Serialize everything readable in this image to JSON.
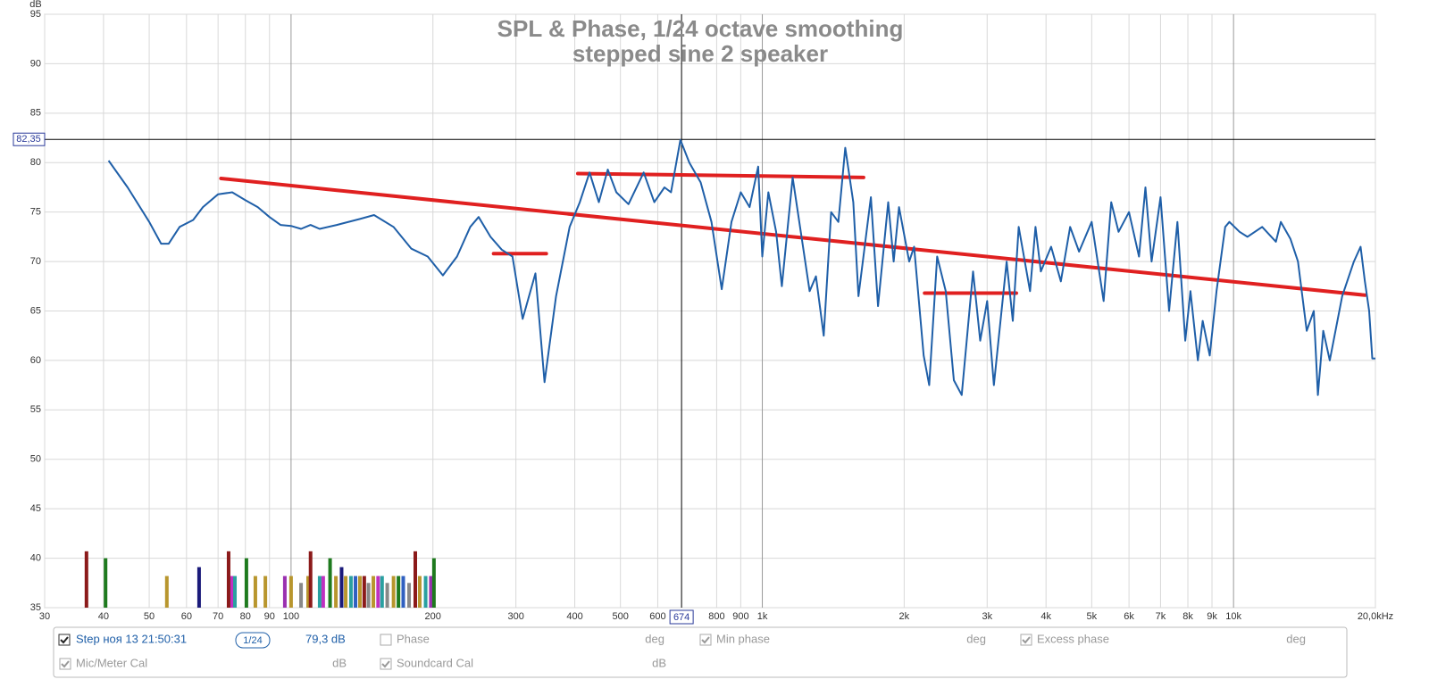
{
  "chart_data": {
    "type": "line",
    "title": "SPL & Phase, 1/24 octave smoothing",
    "subtitle": "stepped sine 2 speaker",
    "y_label": "dB",
    "xscale": "log",
    "xlim": [
      30,
      20000
    ],
    "ylim": [
      35,
      95
    ],
    "xticks": [
      30,
      40,
      50,
      60,
      70,
      80,
      90,
      100,
      200,
      300,
      400,
      500,
      600,
      800,
      900,
      {
        "value": 1000,
        "label": "1k"
      },
      {
        "value": 2000,
        "label": "2k"
      },
      {
        "value": 3000,
        "label": "3k"
      },
      {
        "value": 4000,
        "label": "4k"
      },
      {
        "value": 5000,
        "label": "5k"
      },
      {
        "value": 6000,
        "label": "6k"
      },
      {
        "value": 7000,
        "label": "7k"
      },
      {
        "value": 8000,
        "label": "8k"
      },
      {
        "value": 9000,
        "label": "9k"
      },
      {
        "value": 10000,
        "label": "10k"
      },
      {
        "value": 20000,
        "label": "20,0kHz"
      }
    ],
    "yticks": [
      35,
      40,
      45,
      50,
      55,
      60,
      65,
      70,
      75,
      80,
      85,
      90,
      95
    ],
    "grid": true,
    "cursor": {
      "x": {
        "value": 674,
        "label": "674"
      },
      "y": {
        "value": 82.35,
        "label": "82,35"
      }
    },
    "series": [
      {
        "name": "Step ноя 13 21:50:31",
        "color": "#1f5fa8",
        "x": [
          41,
          45,
          50,
          53,
          55,
          58,
          62,
          65,
          70,
          75,
          80,
          85,
          90,
          95,
          100,
          105,
          110,
          115,
          125,
          140,
          150,
          165,
          180,
          195,
          210,
          225,
          240,
          250,
          265,
          280,
          295,
          310,
          330,
          345,
          365,
          390,
          410,
          430,
          450,
          470,
          490,
          520,
          560,
          590,
          620,
          640,
          670,
          700,
          740,
          780,
          820,
          860,
          900,
          940,
          980,
          1000,
          1030,
          1070,
          1100,
          1160,
          1220,
          1260,
          1300,
          1350,
          1400,
          1450,
          1500,
          1560,
          1600,
          1700,
          1760,
          1850,
          1900,
          1950,
          2050,
          2100,
          2200,
          2260,
          2350,
          2450,
          2550,
          2650,
          2800,
          2900,
          3000,
          3100,
          3300,
          3400,
          3500,
          3700,
          3800,
          3900,
          4100,
          4300,
          4500,
          4700,
          5000,
          5300,
          5500,
          5700,
          6000,
          6300,
          6500,
          6700,
          7000,
          7300,
          7600,
          7900,
          8100,
          8400,
          8600,
          8900,
          9200,
          9600,
          9800,
          10300,
          10700,
          11500,
          12300,
          12600,
          13200,
          13700,
          14300,
          14800,
          15100,
          15500,
          16000,
          17000,
          18000,
          18600,
          19000,
          19400,
          19700,
          20000
        ],
        "values": [
          80.2,
          77.5,
          74,
          71.8,
          71.8,
          73.5,
          74.2,
          75.5,
          76.8,
          77,
          76.2,
          75.5,
          74.5,
          73.7,
          73.6,
          73.3,
          73.7,
          73.3,
          73.7,
          74.3,
          74.7,
          73.5,
          71.3,
          70.5,
          68.6,
          70.5,
          73.5,
          74.5,
          72.5,
          71.2,
          70.5,
          64.2,
          68.8,
          57.8,
          66.5,
          73.5,
          76,
          79,
          76,
          79.3,
          77,
          75.8,
          79,
          76,
          77.5,
          77,
          82.3,
          80,
          78,
          74,
          67.2,
          74,
          77,
          75.5,
          79.6,
          70.5,
          77,
          73,
          67.5,
          78.5,
          71.5,
          67,
          68.5,
          62.5,
          75,
          74,
          81.5,
          76,
          66.5,
          76.5,
          65.5,
          76,
          70,
          75.5,
          70,
          71.5,
          60.5,
          57.5,
          70.5,
          67,
          58,
          56.5,
          69,
          62,
          66,
          57.5,
          70,
          64,
          73.5,
          67,
          73.5,
          69,
          71.5,
          68,
          73.5,
          71,
          74,
          66,
          76,
          73,
          75,
          70.5,
          77.5,
          70,
          76.5,
          65,
          74,
          62,
          67,
          60,
          64,
          60.5,
          67,
          73.5,
          74,
          73,
          72.5,
          73.5,
          72,
          74,
          72.3,
          70,
          63,
          65,
          56.5,
          63,
          60,
          66.5,
          70,
          71.5,
          68,
          65,
          60.2,
          60.2
        ]
      }
    ],
    "target_lines": [
      {
        "color": "#e02020",
        "x": [
          71,
          19000
        ],
        "values": [
          78.4,
          66.6
        ]
      },
      {
        "color": "#e02020",
        "x": [
          269,
          348
        ],
        "values": [
          70.8,
          70.8
        ]
      },
      {
        "color": "#e02020",
        "x": [
          406,
          1640
        ],
        "values": [
          78.9,
          78.5
        ]
      },
      {
        "color": "#e02020",
        "x": [
          2210,
          3460
        ],
        "values": [
          66.8,
          66.8
        ]
      }
    ],
    "markers": {
      "x": [
        36.8,
        40.4,
        54.5,
        63.8,
        73.7,
        75,
        76,
        80.4,
        84,
        88.2,
        97,
        100,
        105,
        108.7,
        110,
        115,
        117,
        121,
        124.5,
        128,
        130.6,
        134,
        137,
        140,
        143,
        146,
        149.5,
        153,
        156,
        160,
        165,
        169,
        173,
        178,
        183.5,
        187.5,
        193,
        198,
        201
      ],
      "values": [
        40.7,
        40,
        38.2,
        39.1,
        40.7,
        38.2,
        38.2,
        40,
        38.2,
        38.2,
        38.2,
        38.2,
        37.5,
        38.2,
        40.7,
        38.2,
        38.2,
        40,
        38.2,
        39.1,
        38.2,
        38.2,
        38.2,
        38.2,
        38.2,
        37.5,
        38.2,
        38.2,
        38.2,
        37.5,
        38.2,
        38.2,
        38.2,
        37.5,
        40.7,
        38.2,
        38.2,
        38.2,
        40
      ],
      "colors": [
        "#8b1a1a",
        "#1e7a1e",
        "#b8962e",
        "#1a1a7a",
        "#8b1a1a",
        "#c030c0",
        "#2aa0a0",
        "#1e7a1e",
        "#b8962e",
        "#b8962e",
        "#9a30b0",
        "#b8962e",
        "#888888",
        "#b8962e",
        "#8b1a1a",
        "#2aa0a0",
        "#c030c0",
        "#1e7a1e",
        "#b8962e",
        "#1a1a7a",
        "#b8962e",
        "#2aa0a0",
        "#3060c0",
        "#b8962e",
        "#8b1a1a",
        "#888888",
        "#b8962e",
        "#c030c0",
        "#2aa0a0",
        "#888888",
        "#b8962e",
        "#1e7a1e",
        "#3060c0",
        "#888888",
        "#8b1a1a",
        "#b8962e",
        "#2aa0a0",
        "#9a30b0",
        "#1e7a1e"
      ]
    }
  },
  "panel": {
    "trace": {
      "checked": true,
      "smoothing": "1/24",
      "level": "79,3 dB"
    },
    "items": [
      {
        "label": "Phase",
        "unit": "deg",
        "checked": false
      },
      {
        "label": "Min phase",
        "unit": "deg",
        "checked": true
      },
      {
        "label": "Excess phase",
        "unit": "deg",
        "checked": true
      },
      {
        "label": "Mic/Meter Cal",
        "unit": "dB",
        "checked": true
      },
      {
        "label": "Soundcard Cal",
        "unit": "dB",
        "checked": true
      }
    ]
  }
}
